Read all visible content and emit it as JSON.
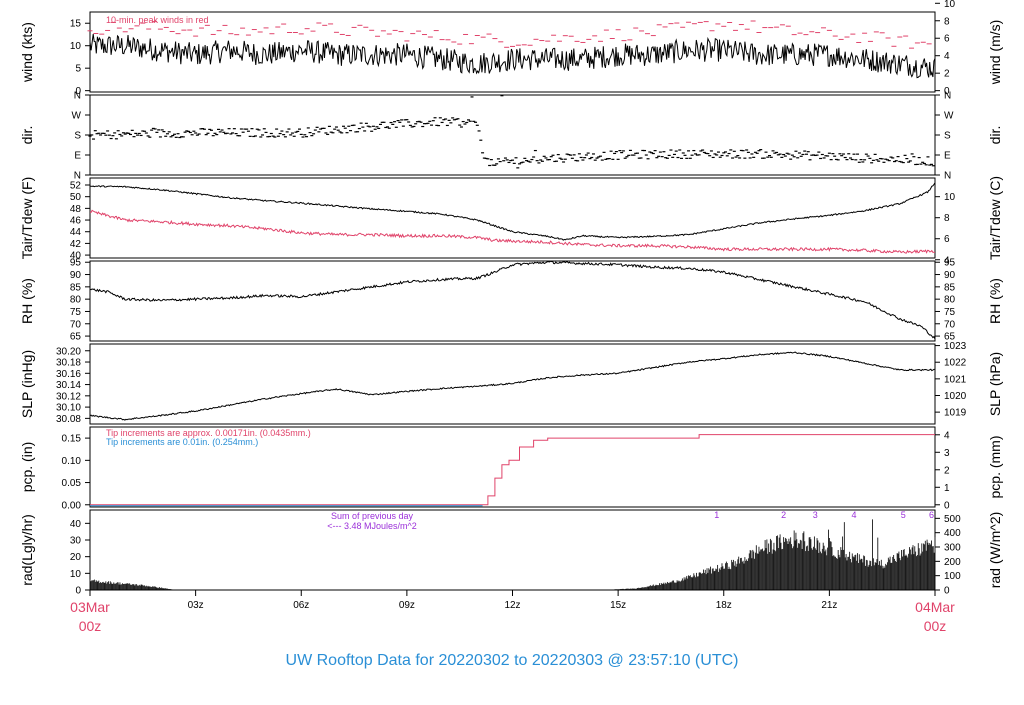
{
  "title": "UW Rooftop Data for 20220302  to  20220303 @ 23:57:10  (UTC)",
  "x_axis": {
    "start_label": [
      "03Mar",
      "00z"
    ],
    "end_label": [
      "04Mar",
      "00z"
    ],
    "ticks": [
      "03z",
      "06z",
      "09z",
      "12z",
      "15z",
      "18z",
      "21z"
    ],
    "label_color": "#e0436a"
  },
  "panels": {
    "wind": {
      "ylabel_left": "wind (kts)",
      "ylabel_right": "wind (m/s)",
      "left_ticks": [
        "0",
        "5",
        "10",
        "15"
      ],
      "right_ticks": [
        "0",
        "2",
        "4",
        "6",
        "8",
        "10"
      ],
      "note": "10-min. peak winds in red"
    },
    "dir": {
      "ylabel_left": "dir.",
      "ylabel_right": "dir.",
      "left_ticks": [
        "N",
        "E",
        "S",
        "W",
        "N"
      ],
      "right_ticks": [
        "N",
        "E",
        "S",
        "W",
        "N"
      ]
    },
    "temp": {
      "ylabel_left": "Tair/Tdew (F)",
      "ylabel_right": "Tair/Tdew (C)",
      "left_ticks": [
        "40",
        "42",
        "44",
        "46",
        "48",
        "50",
        "52"
      ],
      "right_ticks": [
        "4",
        "6",
        "8",
        "10"
      ]
    },
    "rh": {
      "ylabel_left": "RH (%)",
      "ylabel_right": "RH (%)",
      "left_ticks": [
        "65",
        "70",
        "75",
        "80",
        "85",
        "90",
        "95"
      ],
      "right_ticks": [
        "65",
        "70",
        "75",
        "80",
        "85",
        "90",
        "95"
      ]
    },
    "slp": {
      "ylabel_left": "SLP (inHg)",
      "ylabel_right": "SLP (hPa)",
      "left_ticks": [
        "30.08",
        "30.10",
        "30.12",
        "30.14",
        "30.16",
        "30.18",
        "30.20"
      ],
      "right_ticks": [
        "1019",
        "1020",
        "1021",
        "1022",
        "1023"
      ]
    },
    "pcp": {
      "ylabel_left": "pcp. (in)",
      "ylabel_right": "pcp. (mm)",
      "left_ticks": [
        "0.00",
        "0.05",
        "0.10",
        "0.15"
      ],
      "right_ticks": [
        "0",
        "1",
        "2",
        "3",
        "4"
      ],
      "note_red": "Tip increments are approx. 0.00171in. (0.0435mm.)",
      "note_blue": "Tip increments are 0.01in. (0.254mm.)"
    },
    "rad": {
      "ylabel_left": "rad(Lgly/hr)",
      "ylabel_right": "rad (W/m^2)",
      "left_ticks": [
        "0",
        "10",
        "20",
        "30",
        "40"
      ],
      "right_ticks": [
        "0",
        "100",
        "200",
        "300",
        "400",
        "500"
      ],
      "note_line1": "Sum of previous day",
      "note_line2": "<--- 3.48 MJoules/m^2",
      "markers": [
        "1",
        "2",
        "3",
        "4",
        "5",
        "6"
      ]
    }
  },
  "colors": {
    "line": "#000000",
    "peak": "#e0436a",
    "dewpoint": "#e0436a",
    "pcp_red": "#e0436a",
    "pcp_blue": "#2a8fd6",
    "rad_note": "#9b30d9",
    "title": "#2a8fd6"
  },
  "chart_data": {
    "type": "line",
    "x_range_hours": [
      0,
      24
    ],
    "series": [
      {
        "name": "wind",
        "unit": "kts",
        "ylim": [
          0,
          17
        ],
        "points": [
          [
            0,
            10
          ],
          [
            1,
            10
          ],
          [
            2,
            9
          ],
          [
            3,
            8
          ],
          [
            4,
            9
          ],
          [
            5,
            8
          ],
          [
            6,
            9
          ],
          [
            7,
            8
          ],
          [
            8,
            8
          ],
          [
            9,
            8
          ],
          [
            10,
            7
          ],
          [
            11,
            6
          ],
          [
            12,
            7
          ],
          [
            13,
            7
          ],
          [
            14,
            7
          ],
          [
            15,
            8
          ],
          [
            16,
            8
          ],
          [
            17,
            9
          ],
          [
            18,
            9
          ],
          [
            19,
            8
          ],
          [
            20,
            8
          ],
          [
            21,
            8
          ],
          [
            22,
            7
          ],
          [
            23,
            6
          ],
          [
            24,
            5
          ]
        ]
      },
      {
        "name": "10-min. peak winds",
        "unit": "kts",
        "points": [
          [
            0,
            14
          ],
          [
            2,
            14
          ],
          [
            4,
            13
          ],
          [
            6,
            14
          ],
          [
            8,
            13
          ],
          [
            10,
            12
          ],
          [
            12,
            11
          ],
          [
            14,
            12
          ],
          [
            16,
            13
          ],
          [
            18,
            15
          ],
          [
            20,
            13
          ],
          [
            22,
            12
          ],
          [
            24,
            10
          ]
        ]
      },
      {
        "name": "dir.",
        "unit": "compass",
        "ylim": [
          0,
          360
        ],
        "points": [
          [
            0,
            180
          ],
          [
            3,
            190
          ],
          [
            6,
            190
          ],
          [
            8,
            220
          ],
          [
            10,
            240
          ],
          [
            11,
            230
          ],
          [
            11.2,
            60
          ],
          [
            12,
            60
          ],
          [
            13,
            75
          ],
          [
            15,
            90
          ],
          [
            17,
            95
          ],
          [
            19,
            95
          ],
          [
            21,
            85
          ],
          [
            22,
            75
          ],
          [
            23,
            70
          ],
          [
            24,
            60
          ]
        ]
      },
      {
        "name": "Tair",
        "unit": "F",
        "ylim": [
          40,
          53
        ],
        "points": [
          [
            0,
            51.8
          ],
          [
            1,
            51.7
          ],
          [
            2,
            51.2
          ],
          [
            3,
            50.5
          ],
          [
            4,
            49.8
          ],
          [
            5,
            49.3
          ],
          [
            6,
            48.9
          ],
          [
            7,
            48.4
          ],
          [
            8,
            47.9
          ],
          [
            9,
            47.5
          ],
          [
            10,
            47
          ],
          [
            11,
            46
          ],
          [
            11.5,
            45
          ],
          [
            12,
            44
          ],
          [
            13,
            43.2
          ],
          [
            13.5,
            42.6
          ],
          [
            14,
            43.3
          ],
          [
            15,
            43
          ],
          [
            16,
            43.2
          ],
          [
            17,
            43.5
          ],
          [
            18,
            44.5
          ],
          [
            19,
            45.5
          ],
          [
            20,
            46.2
          ],
          [
            21,
            46.8
          ],
          [
            22,
            47.6
          ],
          [
            23,
            48.8
          ],
          [
            23.8,
            50.8
          ],
          [
            24,
            52.4
          ]
        ]
      },
      {
        "name": "Tdew",
        "unit": "F",
        "points": [
          [
            0,
            47.5
          ],
          [
            1,
            46
          ],
          [
            2,
            45.7
          ],
          [
            3,
            45.3
          ],
          [
            4,
            45
          ],
          [
            5,
            44.5
          ],
          [
            6,
            43.8
          ],
          [
            7,
            43.5
          ],
          [
            8,
            43.5
          ],
          [
            9,
            43.3
          ],
          [
            10,
            43.3
          ],
          [
            11,
            43
          ],
          [
            11.5,
            42.5
          ],
          [
            12,
            42.4
          ],
          [
            13,
            42.2
          ],
          [
            14,
            41.8
          ],
          [
            15,
            41.6
          ],
          [
            16,
            41.6
          ],
          [
            17,
            41.4
          ],
          [
            18,
            41
          ],
          [
            19,
            41
          ],
          [
            20,
            41
          ],
          [
            21,
            41
          ],
          [
            22,
            40.8
          ],
          [
            23,
            40.5
          ],
          [
            24,
            40.7
          ]
        ]
      },
      {
        "name": "RH",
        "unit": "%",
        "ylim": [
          63,
          95
        ],
        "points": [
          [
            0,
            84
          ],
          [
            0.5,
            83
          ],
          [
            1,
            80
          ],
          [
            2,
            79.5
          ],
          [
            3,
            80
          ],
          [
            4,
            80.5
          ],
          [
            5,
            81.5
          ],
          [
            6,
            81
          ],
          [
            7,
            83
          ],
          [
            8,
            85
          ],
          [
            9,
            87
          ],
          [
            10,
            88
          ],
          [
            11,
            88.5
          ],
          [
            11.5,
            91
          ],
          [
            12,
            94
          ],
          [
            13,
            95
          ],
          [
            14,
            94.5
          ],
          [
            15,
            94
          ],
          [
            16,
            93
          ],
          [
            17,
            92.5
          ],
          [
            18,
            91
          ],
          [
            19,
            88
          ],
          [
            20,
            85
          ],
          [
            21,
            82
          ],
          [
            22,
            79
          ],
          [
            23,
            72
          ],
          [
            23.6,
            69
          ],
          [
            24,
            64
          ]
        ]
      },
      {
        "name": "SLP",
        "unit": "inHg",
        "ylim": [
          30.07,
          30.21
        ],
        "points": [
          [
            0,
            30.085
          ],
          [
            1,
            30.078
          ],
          [
            2,
            30.085
          ],
          [
            3,
            30.093
          ],
          [
            4,
            30.104
          ],
          [
            5,
            30.115
          ],
          [
            6,
            30.124
          ],
          [
            7,
            30.132
          ],
          [
            8,
            30.122
          ],
          [
            9,
            30.128
          ],
          [
            10,
            30.133
          ],
          [
            11,
            30.137
          ],
          [
            12,
            30.142
          ],
          [
            13,
            30.152
          ],
          [
            14,
            30.157
          ],
          [
            15,
            30.16
          ],
          [
            16,
            30.17
          ],
          [
            17,
            30.18
          ],
          [
            18,
            30.186
          ],
          [
            19,
            30.193
          ],
          [
            20,
            30.197
          ],
          [
            21,
            30.19
          ],
          [
            22,
            30.178
          ],
          [
            23,
            30.166
          ],
          [
            24,
            30.166
          ]
        ]
      },
      {
        "name": "pcp.",
        "unit": "in",
        "ylim": [
          -0.005,
          0.175
        ],
        "points": [
          [
            0,
            0
          ],
          [
            11.15,
            0
          ],
          [
            11.3,
            0.02
          ],
          [
            11.5,
            0.06
          ],
          [
            11.7,
            0.09
          ],
          [
            11.9,
            0.1
          ],
          [
            12.2,
            0.13
          ],
          [
            12.6,
            0.145
          ],
          [
            13,
            0.15
          ],
          [
            15,
            0.15
          ],
          [
            17,
            0.15
          ],
          [
            17.3,
            0.158
          ],
          [
            24,
            0.158
          ]
        ]
      },
      {
        "name": "rad",
        "unit": "Lgly/hr",
        "ylim": [
          0,
          48
        ],
        "points": [
          [
            0,
            6
          ],
          [
            0.5,
            5
          ],
          [
            1,
            4
          ],
          [
            1.5,
            3
          ],
          [
            2,
            1.5
          ],
          [
            2.3,
            0.5
          ],
          [
            2.4,
            0
          ],
          [
            14.5,
            0
          ],
          [
            15.5,
            1
          ],
          [
            16.5,
            5
          ],
          [
            17,
            8
          ],
          [
            17.5,
            12
          ],
          [
            18,
            15
          ],
          [
            18.5,
            19
          ],
          [
            19,
            26
          ],
          [
            19.5,
            30
          ],
          [
            20,
            33
          ],
          [
            20.5,
            30
          ],
          [
            21,
            27
          ],
          [
            21.5,
            22
          ],
          [
            22,
            19
          ],
          [
            22.5,
            17
          ],
          [
            23,
            22
          ],
          [
            23.5,
            26
          ],
          [
            24,
            30
          ]
        ]
      }
    ],
    "annotations": [
      "10-min. peak winds in red",
      "Tip increments are approx. 0.00171in. (0.0435mm.)",
      "Tip increments are 0.01in. (0.254mm.)",
      "Sum of previous day",
      "<--- 3.48 MJoules/m^2"
    ]
  }
}
